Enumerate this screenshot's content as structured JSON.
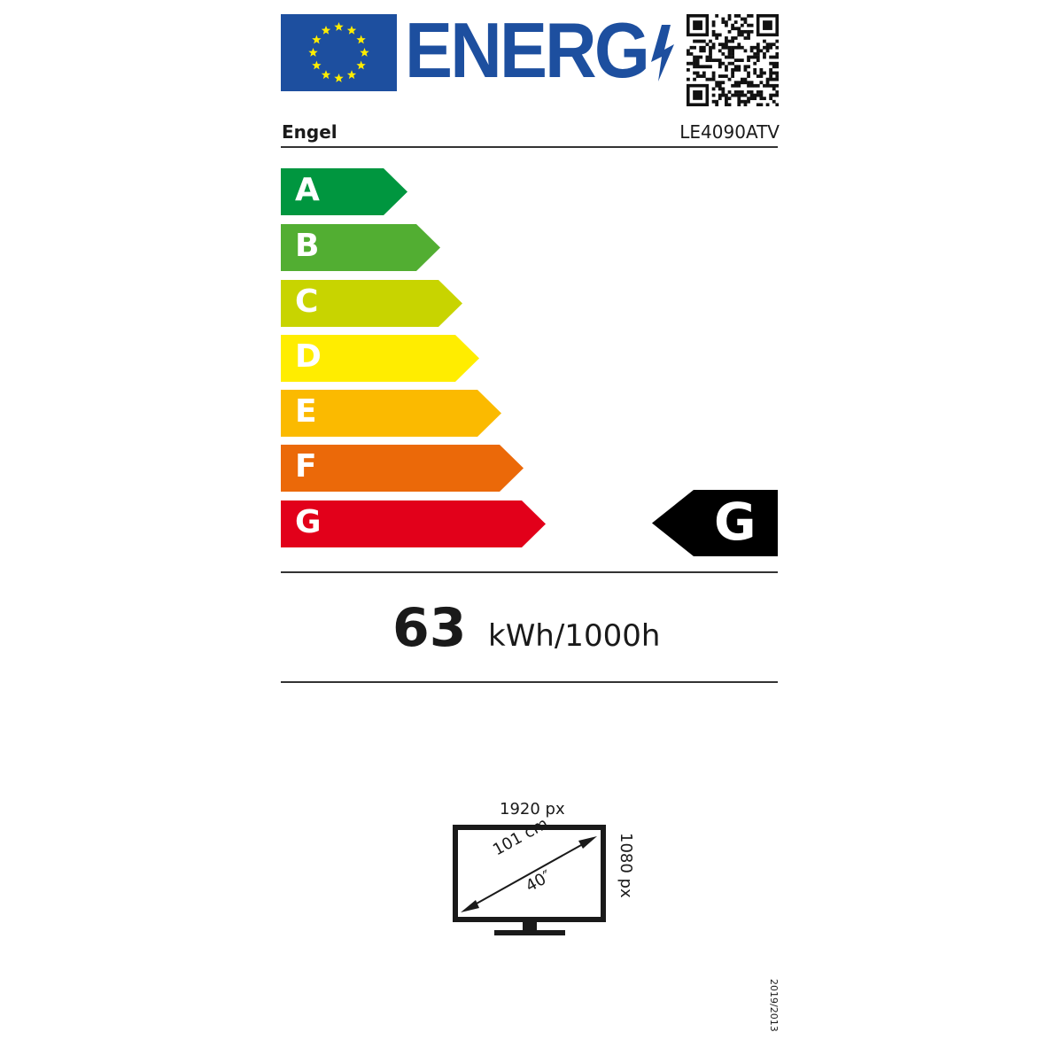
{
  "header": {
    "logo_text": "ENERG",
    "brand": "Engel",
    "model": "LE4090ATV"
  },
  "scale": {
    "classes": [
      {
        "label": "A",
        "color": "#00963f"
      },
      {
        "label": "B",
        "color": "#52ae32"
      },
      {
        "label": "C",
        "color": "#c8d400"
      },
      {
        "label": "D",
        "color": "#ffed00"
      },
      {
        "label": "E",
        "color": "#fbba00"
      },
      {
        "label": "F",
        "color": "#eb6909"
      },
      {
        "label": "G",
        "color": "#e2001a"
      }
    ],
    "rating": "G"
  },
  "consumption": {
    "value": "63",
    "unit": "kWh/1000h"
  },
  "screen": {
    "width_px": "1920 px",
    "height_px": "1080 px",
    "diagonal_cm": "101 cm",
    "diagonal_in": "40″"
  },
  "regulation": "2019/2013",
  "icons": {
    "flag": "eu-flag-icon",
    "bolt": "lightning-icon",
    "qr": "qr-code-icon",
    "tv": "tv-icon"
  }
}
